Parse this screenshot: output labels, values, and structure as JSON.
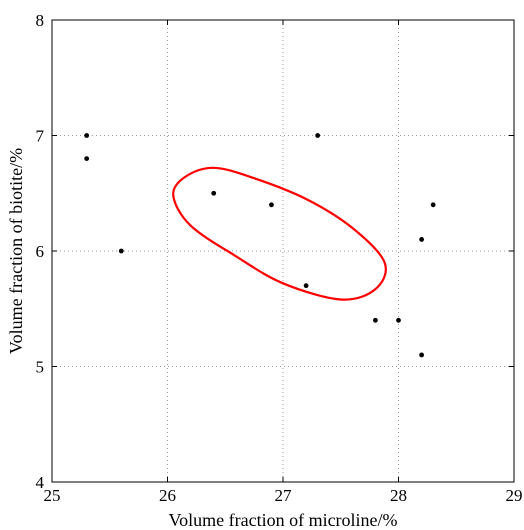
{
  "chart_data": {
    "type": "scatter",
    "title": "",
    "xlabel": "Volume fraction of microline/%",
    "ylabel": "Volume fraction of biotite/%",
    "xlim": [
      25,
      29
    ],
    "ylim": [
      4,
      8
    ],
    "xticks": [
      "25",
      "26",
      "27",
      "28",
      "29"
    ],
    "yticks": [
      "4",
      "5",
      "6",
      "7",
      "8"
    ],
    "grid": true,
    "legend": "none",
    "point_color": "#000000",
    "ellipse_color": "#ff0000",
    "points": [
      {
        "x": 25.3,
        "y": 7.0
      },
      {
        "x": 25.3,
        "y": 6.8
      },
      {
        "x": 25.6,
        "y": 6.0
      },
      {
        "x": 26.4,
        "y": 6.5
      },
      {
        "x": 26.9,
        "y": 6.4
      },
      {
        "x": 27.2,
        "y": 5.7
      },
      {
        "x": 27.3,
        "y": 7.0
      },
      {
        "x": 27.8,
        "y": 5.4
      },
      {
        "x": 28.0,
        "y": 5.4
      },
      {
        "x": 28.2,
        "y": 6.1
      },
      {
        "x": 28.2,
        "y": 5.1
      },
      {
        "x": 28.3,
        "y": 6.4
      }
    ],
    "ellipse_outline": [
      [
        26.05,
        6.48
      ],
      [
        26.15,
        6.64
      ],
      [
        26.4,
        6.72
      ],
      [
        26.75,
        6.63
      ],
      [
        27.2,
        6.45
      ],
      [
        27.6,
        6.2
      ],
      [
        27.88,
        5.9
      ],
      [
        27.8,
        5.67
      ],
      [
        27.5,
        5.58
      ],
      [
        27.0,
        5.72
      ],
      [
        26.6,
        5.95
      ],
      [
        26.2,
        6.22
      ]
    ]
  }
}
